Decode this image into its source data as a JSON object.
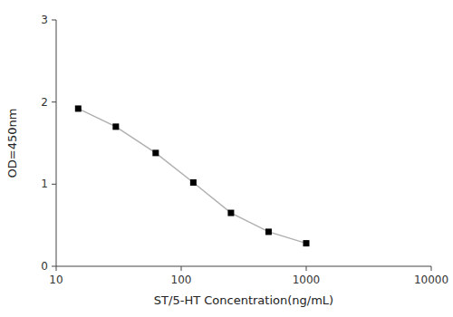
{
  "chart_data": {
    "type": "line",
    "x": [
      15,
      30,
      62.5,
      125,
      250,
      500,
      1000
    ],
    "series": [
      {
        "color": "#b0b0b0",
        "marker": "square",
        "values": [
          1.92,
          1.7,
          1.38,
          1.02,
          0.65,
          0.42,
          0.28
        ]
      }
    ],
    "xlabel": "ST/5-HT Concentration(ng/mL)",
    "ylabel": "OD=450nm",
    "xlim": [
      10,
      10000
    ],
    "ylim": [
      0,
      3
    ],
    "xticks": [
      10,
      100,
      1000,
      10000
    ],
    "yticks": [
      0,
      1,
      2,
      3
    ],
    "log": "x",
    "grid": false
  }
}
